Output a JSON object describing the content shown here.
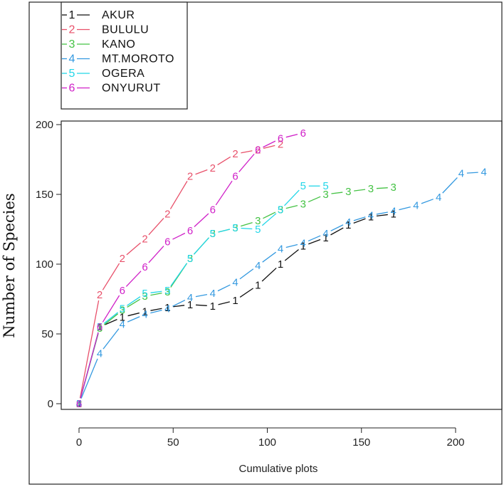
{
  "chart_data": {
    "type": "line",
    "xlabel": "Cumulative plots",
    "ylabel": "Number of Species",
    "xlim": [
      -5,
      222
    ],
    "ylim": [
      -5,
      200
    ],
    "xticks": [
      0,
      50,
      100,
      150,
      200
    ],
    "yticks": [
      0,
      50,
      100,
      150,
      200
    ],
    "legend_position": "top-left",
    "series": [
      {
        "name": "AKUR",
        "marker": "1",
        "color": "#111111",
        "x": [
          0,
          11,
          23,
          35,
          47,
          59,
          71,
          83,
          95,
          107,
          119,
          131,
          143,
          155,
          167
        ],
        "y": [
          0,
          55,
          62,
          66,
          69,
          71,
          70,
          74,
          85,
          100,
          113,
          119,
          128,
          134,
          136
        ]
      },
      {
        "name": "BULULU",
        "marker": "2",
        "color": "#e8506a",
        "x": [
          0,
          11,
          23,
          35,
          47,
          59,
          71,
          83,
          95,
          107
        ],
        "y": [
          0,
          78,
          104,
          118,
          136,
          163,
          169,
          179,
          182,
          186
        ]
      },
      {
        "name": "KANO",
        "marker": "3",
        "color": "#44c244",
        "x": [
          0,
          11,
          23,
          35,
          47,
          59,
          71,
          83,
          95,
          107,
          119,
          131,
          143,
          155,
          167
        ],
        "y": [
          0,
          54,
          67,
          77,
          80,
          104,
          122,
          126,
          131,
          139,
          143,
          150,
          152,
          154,
          155
        ]
      },
      {
        "name": "MT.MOROTO",
        "marker": "4",
        "color": "#3399e0",
        "x": [
          0,
          11,
          23,
          35,
          47,
          59,
          71,
          83,
          95,
          107,
          119,
          131,
          143,
          155,
          167,
          179,
          191,
          203,
          215
        ],
        "y": [
          0,
          36,
          57,
          64,
          68,
          76,
          79,
          87,
          99,
          111,
          115,
          122,
          130,
          135,
          138,
          142,
          148,
          165,
          166
        ]
      },
      {
        "name": "OGERA",
        "marker": "5",
        "color": "#22d6e8",
        "x": [
          0,
          11,
          23,
          35,
          47,
          59,
          71,
          83,
          95,
          107,
          119,
          131
        ],
        "y": [
          0,
          55,
          68,
          79,
          81,
          104,
          122,
          126,
          125,
          139,
          156,
          156
        ]
      },
      {
        "name": "ONYURUT",
        "marker": "6",
        "color": "#d020c8",
        "x": [
          0,
          11,
          23,
          35,
          47,
          59,
          71,
          83,
          95,
          107,
          119
        ],
        "y": [
          0,
          55,
          81,
          98,
          116,
          124,
          139,
          163,
          182,
          190,
          194
        ]
      }
    ]
  }
}
